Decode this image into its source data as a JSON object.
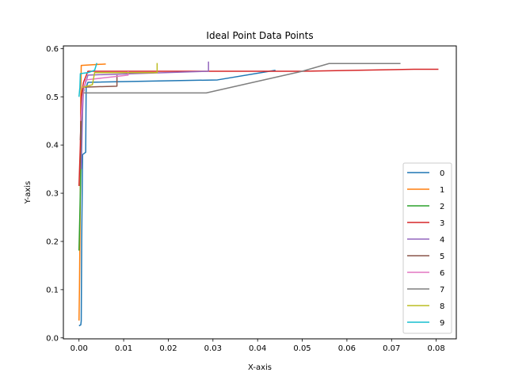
{
  "chart_data": {
    "type": "line",
    "title": "Ideal Point Data Points",
    "xlabel": "X-axis",
    "ylabel": "Y-axis",
    "xlim": [
      -0.0035,
      0.0845
    ],
    "ylim": [
      -0.002,
      0.6055
    ],
    "x_ticks": [
      0.0,
      0.01,
      0.02,
      0.03,
      0.04,
      0.05,
      0.06,
      0.07,
      0.08
    ],
    "x_tick_labels": [
      "0.00",
      "0.01",
      "0.02",
      "0.03",
      "0.04",
      "0.05",
      "0.06",
      "0.07",
      "0.08"
    ],
    "y_ticks": [
      0.0,
      0.1,
      0.2,
      0.3,
      0.4,
      0.5,
      0.6
    ],
    "y_tick_labels": [
      "0.0",
      "0.1",
      "0.2",
      "0.3",
      "0.4",
      "0.5",
      "0.6"
    ],
    "grid": false,
    "legend_position": "lower-right",
    "series": [
      {
        "name": "0",
        "color": "#1f77b4",
        "points": [
          [
            0.0,
            0.025
          ],
          [
            0.0004,
            0.027
          ],
          [
            0.0005,
            0.035
          ],
          [
            0.0006,
            0.2
          ],
          [
            0.0008,
            0.38
          ],
          [
            0.0015,
            0.385
          ],
          [
            0.0016,
            0.52
          ],
          [
            0.002,
            0.53
          ],
          [
            0.031,
            0.535
          ],
          [
            0.044,
            0.555
          ]
        ]
      },
      {
        "name": "1",
        "color": "#ff7f0e",
        "points": [
          [
            0.0,
            0.036
          ],
          [
            0.0001,
            0.1
          ],
          [
            0.0003,
            0.3
          ],
          [
            0.0004,
            0.5
          ],
          [
            0.0005,
            0.565
          ],
          [
            0.006,
            0.568
          ]
        ]
      },
      {
        "name": "2",
        "color": "#2ca02c",
        "points": [
          [
            0.0,
            0.181
          ],
          [
            0.0002,
            0.26
          ],
          [
            0.0004,
            0.35
          ],
          [
            0.0006,
            0.47
          ],
          [
            0.001,
            0.51
          ],
          [
            0.0012,
            0.515
          ]
        ]
      },
      {
        "name": "3",
        "color": "#d62728",
        "points": [
          [
            0.0,
            0.315
          ],
          [
            0.0003,
            0.4
          ],
          [
            0.0005,
            0.5
          ],
          [
            0.001,
            0.53
          ],
          [
            0.002,
            0.553
          ],
          [
            0.03,
            0.553
          ],
          [
            0.05,
            0.553
          ],
          [
            0.075,
            0.557
          ],
          [
            0.0805,
            0.557
          ]
        ]
      },
      {
        "name": "4",
        "color": "#9467bd",
        "points": [
          [
            0.0005,
            0.35
          ],
          [
            0.0008,
            0.47
          ],
          [
            0.001,
            0.515
          ],
          [
            0.002,
            0.545
          ],
          [
            0.029,
            0.553
          ],
          [
            0.029,
            0.573
          ]
        ]
      },
      {
        "name": "5",
        "color": "#8c564b",
        "points": [
          [
            0.0003,
            0.41
          ],
          [
            0.0006,
            0.49
          ],
          [
            0.001,
            0.52
          ],
          [
            0.0085,
            0.522
          ],
          [
            0.0085,
            0.545
          ]
        ]
      },
      {
        "name": "6",
        "color": "#e377c2",
        "points": [
          [
            0.0004,
            0.45
          ],
          [
            0.0008,
            0.5
          ],
          [
            0.0015,
            0.535
          ],
          [
            0.011,
            0.545
          ],
          [
            0.011,
            0.553
          ]
        ]
      },
      {
        "name": "7",
        "color": "#7f7f7f",
        "points": [
          [
            0.001,
            0.508
          ],
          [
            0.0285,
            0.508
          ],
          [
            0.05,
            0.553
          ],
          [
            0.056,
            0.569
          ],
          [
            0.072,
            0.569
          ]
        ]
      },
      {
        "name": "8",
        "color": "#bcbd22",
        "points": [
          [
            0.0008,
            0.52
          ],
          [
            0.001,
            0.52
          ],
          [
            0.003,
            0.525
          ],
          [
            0.0035,
            0.55
          ],
          [
            0.0175,
            0.55
          ],
          [
            0.0175,
            0.57
          ]
        ]
      },
      {
        "name": "9",
        "color": "#17becf",
        "points": [
          [
            0.0,
            0.5
          ],
          [
            0.0002,
            0.52
          ],
          [
            0.0003,
            0.548
          ],
          [
            0.002,
            0.55
          ],
          [
            0.0035,
            0.555
          ],
          [
            0.004,
            0.57
          ]
        ]
      }
    ]
  }
}
